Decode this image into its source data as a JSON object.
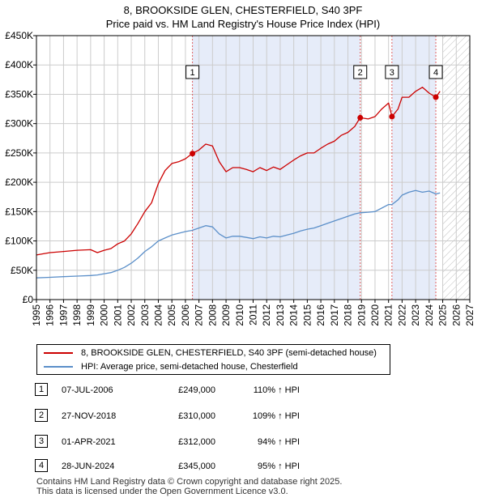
{
  "title_line1": "8, BROOKSIDE GLEN, CHESTERFIELD, S40 3PF",
  "title_line2": "Price paid vs. HM Land Registry's House Price Index (HPI)",
  "colors": {
    "property": "#cc0000",
    "hpi": "#5b8fc9",
    "shade": "#e6ecf9",
    "grid": "#cccccc",
    "marker_line": "#e06060"
  },
  "chart_data": {
    "type": "line",
    "title": "Price paid vs. HM Land Registry's House Price Index (HPI)",
    "xlabel": "",
    "ylabel": "",
    "xlim": [
      1995,
      2027
    ],
    "ylim": [
      0,
      450000
    ],
    "y_ticks": [
      0,
      50000,
      100000,
      150000,
      200000,
      250000,
      300000,
      350000,
      400000,
      450000
    ],
    "y_tick_labels": [
      "£0",
      "£50K",
      "£100K",
      "£150K",
      "£200K",
      "£250K",
      "£300K",
      "£350K",
      "£400K",
      "£450K"
    ],
    "x_ticks": [
      1995,
      1996,
      1997,
      1998,
      1999,
      2000,
      2001,
      2002,
      2003,
      2004,
      2005,
      2006,
      2007,
      2008,
      2009,
      2010,
      2011,
      2012,
      2013,
      2014,
      2015,
      2016,
      2017,
      2018,
      2019,
      2020,
      2021,
      2022,
      2023,
      2024,
      2025,
      2026,
      2027
    ],
    "shaded_ranges": [
      [
        2006.5,
        2018.9
      ],
      [
        2021.25,
        2024.5
      ]
    ],
    "hatched_from": 2025.0,
    "series": [
      {
        "name": "8, BROOKSIDE GLEN, CHESTERFIELD, S40 3PF (semi-detached house)",
        "x": [
          1995.0,
          1996.0,
          1997.0,
          1998.0,
          1999.0,
          1999.5,
          2000.0,
          2000.5,
          2001.0,
          2001.5,
          2002.0,
          2002.5,
          2003.0,
          2003.5,
          2004.0,
          2004.5,
          2005.0,
          2005.5,
          2006.0,
          2006.5,
          2007.0,
          2007.5,
          2008.0,
          2008.5,
          2009.0,
          2009.5,
          2010.0,
          2010.5,
          2011.0,
          2011.5,
          2012.0,
          2012.5,
          2013.0,
          2013.5,
          2014.0,
          2014.5,
          2015.0,
          2015.5,
          2016.0,
          2016.5,
          2017.0,
          2017.5,
          2018.0,
          2018.5,
          2018.9,
          2019.5,
          2020.0,
          2020.5,
          2021.0,
          2021.25,
          2021.7,
          2022.0,
          2022.5,
          2023.0,
          2023.5,
          2024.0,
          2024.5,
          2024.8
        ],
        "values": [
          76000,
          80000,
          82000,
          84000,
          85000,
          80000,
          84000,
          87000,
          95000,
          100000,
          112000,
          130000,
          150000,
          165000,
          198000,
          220000,
          232000,
          235000,
          240000,
          249000,
          255000,
          265000,
          262000,
          235000,
          218000,
          225000,
          225000,
          222000,
          218000,
          225000,
          220000,
          226000,
          222000,
          230000,
          238000,
          245000,
          250000,
          250000,
          258000,
          265000,
          270000,
          280000,
          285000,
          295000,
          310000,
          308000,
          312000,
          325000,
          335000,
          312000,
          325000,
          345000,
          345000,
          355000,
          362000,
          352000,
          345000,
          355000
        ]
      },
      {
        "name": "HPI: Average price, semi-detached house, Chesterfield",
        "x": [
          1995.0,
          1996.0,
          1997.0,
          1998.0,
          1999.0,
          1999.5,
          2000.0,
          2000.5,
          2001.0,
          2001.5,
          2002.0,
          2002.5,
          2003.0,
          2003.5,
          2004.0,
          2004.5,
          2005.0,
          2005.5,
          2006.0,
          2006.5,
          2007.0,
          2007.5,
          2008.0,
          2008.5,
          2009.0,
          2009.5,
          2010.0,
          2010.5,
          2011.0,
          2011.5,
          2012.0,
          2012.5,
          2013.0,
          2013.5,
          2014.0,
          2014.5,
          2015.0,
          2015.5,
          2016.0,
          2016.5,
          2017.0,
          2017.5,
          2018.0,
          2018.5,
          2018.9,
          2019.5,
          2020.0,
          2020.5,
          2021.0,
          2021.25,
          2021.7,
          2022.0,
          2022.5,
          2023.0,
          2023.5,
          2024.0,
          2024.5,
          2024.8
        ],
        "values": [
          37000,
          38000,
          39000,
          40000,
          41000,
          42000,
          44000,
          46000,
          50000,
          55000,
          62000,
          71000,
          82000,
          90000,
          100000,
          105000,
          110000,
          113000,
          116000,
          118000,
          122000,
          126000,
          124000,
          112000,
          105000,
          108000,
          108000,
          106000,
          104000,
          107000,
          105000,
          108000,
          107000,
          110000,
          113000,
          117000,
          120000,
          122000,
          126000,
          130000,
          134000,
          138000,
          142000,
          146000,
          148000,
          149000,
          150000,
          156000,
          162000,
          162000,
          170000,
          178000,
          183000,
          186000,
          183000,
          185000,
          180000,
          182000
        ]
      }
    ],
    "sale_markers": [
      {
        "label": "1",
        "x": 2006.52,
        "value": 249000
      },
      {
        "label": "2",
        "x": 2018.91,
        "value": 310000
      },
      {
        "label": "3",
        "x": 2021.25,
        "value": 312000
      },
      {
        "label": "4",
        "x": 2024.49,
        "value": 345000
      }
    ]
  },
  "legend": {
    "items": [
      {
        "label": "8, BROOKSIDE GLEN, CHESTERFIELD, S40 3PF (semi-detached house)",
        "color": "#cc0000"
      },
      {
        "label": "HPI: Average price, semi-detached house, Chesterfield",
        "color": "#5b8fc9"
      }
    ]
  },
  "sales": [
    {
      "num": "1",
      "date": "07-JUL-2006",
      "price": "£249,000",
      "hpi": "110% ↑ HPI"
    },
    {
      "num": "2",
      "date": "27-NOV-2018",
      "price": "£310,000",
      "hpi": "109% ↑ HPI"
    },
    {
      "num": "3",
      "date": "01-APR-2021",
      "price": "£312,000",
      "hpi": "94% ↑ HPI"
    },
    {
      "num": "4",
      "date": "28-JUN-2024",
      "price": "£345,000",
      "hpi": "95% ↑ HPI"
    }
  ],
  "footer_line1": "Contains HM Land Registry data © Crown copyright and database right 2025.",
  "footer_line2": "This data is licensed under the Open Government Licence v3.0."
}
